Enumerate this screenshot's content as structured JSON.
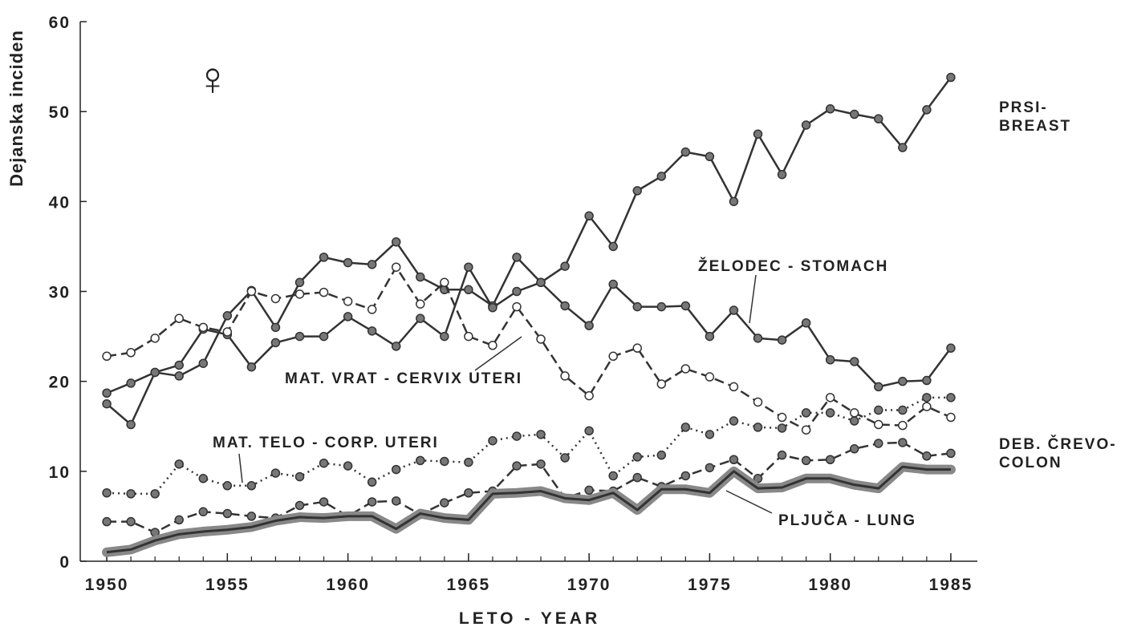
{
  "chart_data": {
    "type": "line",
    "y_label": "Dejanska inciden",
    "x_label": "LETO - YEAR",
    "annotations": [
      "♀"
    ],
    "x": [
      1950,
      1951,
      1952,
      1953,
      1954,
      1955,
      1956,
      1957,
      1958,
      1959,
      1960,
      1961,
      1962,
      1963,
      1964,
      1965,
      1966,
      1967,
      1968,
      1969,
      1970,
      1971,
      1972,
      1973,
      1974,
      1975,
      1976,
      1977,
      1978,
      1979,
      1980,
      1981,
      1982,
      1983,
      1984,
      1985
    ],
    "xlim": [
      1948.9,
      1986.1
    ],
    "xticks": [
      1950,
      1955,
      1960,
      1965,
      1970,
      1975,
      1980,
      1985
    ],
    "ylim": [
      0,
      60
    ],
    "yticks": [
      0,
      10,
      20,
      30,
      40,
      50,
      60
    ],
    "grid": false,
    "series": [
      {
        "name": "PRSI-\nBREAST",
        "color": "#333333",
        "style": "solid",
        "marker": "filled",
        "values": [
          18.7,
          19.8,
          21,
          20.6,
          22,
          27.3,
          30.1,
          26,
          31,
          33.8,
          33.2,
          33,
          35.5,
          31.6,
          30.2,
          30.2,
          28.4,
          33.8,
          31,
          32.8,
          38.4,
          35,
          41.2,
          42.8,
          45.5,
          45,
          40,
          47.5,
          43,
          48.5,
          50.3,
          49.7,
          49.2,
          46,
          50.2,
          53.8
        ]
      },
      {
        "name": "ŽELODEC - STOMACH",
        "color": "#333333",
        "style": "solid",
        "marker": "filled",
        "values": [
          17.5,
          15.2,
          21,
          21.8,
          25.8,
          25.2,
          21.6,
          24.3,
          25,
          25,
          27.2,
          25.6,
          23.9,
          27,
          25,
          32.7,
          28.2,
          30,
          31,
          28.4,
          26.2,
          30.8,
          28.3,
          28.3,
          28.4,
          25,
          27.9,
          24.8,
          24.6,
          26.5,
          22.4,
          22.2,
          19.4,
          20,
          20.1,
          23.7
        ]
      },
      {
        "name": "MAT. VRAT - CERVIX UTERI",
        "color": "#333333",
        "style": "dashed",
        "marker": "open",
        "values": [
          22.8,
          23.2,
          24.8,
          27,
          26,
          25.5,
          30,
          29.2,
          29.7,
          29.9,
          28.9,
          28,
          32.7,
          28.6,
          31,
          25,
          24,
          28.3,
          24.7,
          20.6,
          18.4,
          22.8,
          23.7,
          19.7,
          21.4,
          20.5,
          19.4,
          17.7,
          16,
          14.6,
          18.2,
          16.5,
          15.2,
          15.1,
          17.2,
          16
        ]
      },
      {
        "name": "MAT. TELO - CORP. UTERI",
        "color": "#333333",
        "style": "dotted",
        "marker": "filled",
        "values": [
          7.6,
          7.5,
          7.5,
          10.8,
          9.2,
          8.4,
          8.4,
          9.8,
          9.4,
          10.9,
          10.6,
          8.8,
          10.2,
          11.2,
          11.1,
          11,
          13.4,
          13.9,
          14.1,
          11.5,
          14.5,
          9.5,
          11.6,
          11.8,
          14.9,
          14.1,
          15.6,
          14.9,
          14.8,
          16.5,
          16.5,
          15.6,
          16.8,
          16.8,
          18.2,
          18.2
        ]
      },
      {
        "name": "DEB. ČREVO-\nCOLON",
        "color": "#333333",
        "style": "dashed",
        "marker": "filled",
        "values": [
          4.4,
          4.4,
          3.2,
          4.6,
          5.5,
          5.3,
          5,
          4.8,
          6.2,
          6.6,
          5,
          6.6,
          6.7,
          5.2,
          6.5,
          7.6,
          7.8,
          10.6,
          10.8,
          7,
          7.9,
          7.8,
          9.3,
          8.3,
          9.5,
          10.4,
          11.3,
          9.2,
          11.8,
          11.2,
          11.3,
          12.5,
          13.1,
          13.2,
          11.7,
          12
        ]
      },
      {
        "name": "PLJUČA - LUNG",
        "color": "#333333",
        "style": "thick",
        "marker": "none",
        "values": [
          1,
          1.3,
          2.3,
          3,
          3.3,
          3.5,
          3.8,
          4.5,
          4.9,
          4.8,
          5,
          5,
          3.6,
          5.3,
          4.8,
          4.6,
          7.5,
          7.6,
          7.8,
          7,
          6.8,
          7.6,
          5.7,
          8,
          8,
          7.6,
          10,
          8.1,
          8.2,
          9.2,
          9.2,
          8.5,
          8.1,
          10.5,
          10.2,
          10.2
        ]
      }
    ]
  }
}
